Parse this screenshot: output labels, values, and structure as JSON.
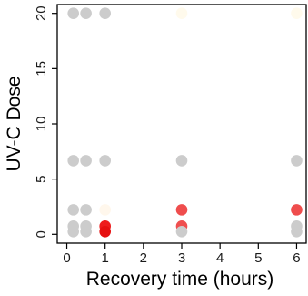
{
  "chart_data": {
    "type": "scatter",
    "title": "",
    "xlabel": "Recovery time (hours)",
    "ylabel": "UV-C Dose",
    "xlim": [
      -0.25,
      6.25
    ],
    "ylim": [
      -0.8,
      20.8
    ],
    "x_ticks": [
      0,
      1,
      2,
      3,
      4,
      5,
      6
    ],
    "y_ticks": [
      0,
      5,
      10,
      15,
      20
    ],
    "grid": false,
    "legend": "none",
    "points": [
      {
        "x": 0.17,
        "y": 20,
        "color": "#cccccc"
      },
      {
        "x": 0.5,
        "y": 20,
        "color": "#cccccc"
      },
      {
        "x": 1,
        "y": 20,
        "color": "#cccccc"
      },
      {
        "x": 3,
        "y": 20,
        "color": "#fffaec"
      },
      {
        "x": 6,
        "y": 20,
        "color": "#fffaec"
      },
      {
        "x": 0.17,
        "y": 6.67,
        "color": "#cccccc"
      },
      {
        "x": 0.5,
        "y": 6.67,
        "color": "#cccccc"
      },
      {
        "x": 1,
        "y": 6.67,
        "color": "#cccccc"
      },
      {
        "x": 3,
        "y": 6.67,
        "color": "#cccccc"
      },
      {
        "x": 6,
        "y": 6.67,
        "color": "#cccccc"
      },
      {
        "x": 0.17,
        "y": 2.22,
        "color": "#cccccc"
      },
      {
        "x": 0.5,
        "y": 2.22,
        "color": "#cccccc"
      },
      {
        "x": 1,
        "y": 2.22,
        "color": "#fff7ec"
      },
      {
        "x": 3,
        "y": 2.22,
        "color": "#ef4d4d"
      },
      {
        "x": 6,
        "y": 2.22,
        "color": "#ef4d4d"
      },
      {
        "x": 0.17,
        "y": 0.74,
        "color": "#cccccc"
      },
      {
        "x": 0.5,
        "y": 0.74,
        "color": "#cccccc"
      },
      {
        "x": 1,
        "y": 0.74,
        "color": "#ee1c1c"
      },
      {
        "x": 3,
        "y": 0.74,
        "color": "#ef4f4f"
      },
      {
        "x": 6,
        "y": 0.74,
        "color": "#cccccc"
      },
      {
        "x": 0.17,
        "y": 0.25,
        "color": "#cccccc"
      },
      {
        "x": 0.5,
        "y": 0.25,
        "color": "#cccccc"
      },
      {
        "x": 1,
        "y": 0.25,
        "color": "#e61010"
      },
      {
        "x": 3,
        "y": 0.25,
        "color": "#cccccc"
      },
      {
        "x": 6,
        "y": 0.25,
        "color": "#cccccc"
      }
    ]
  }
}
